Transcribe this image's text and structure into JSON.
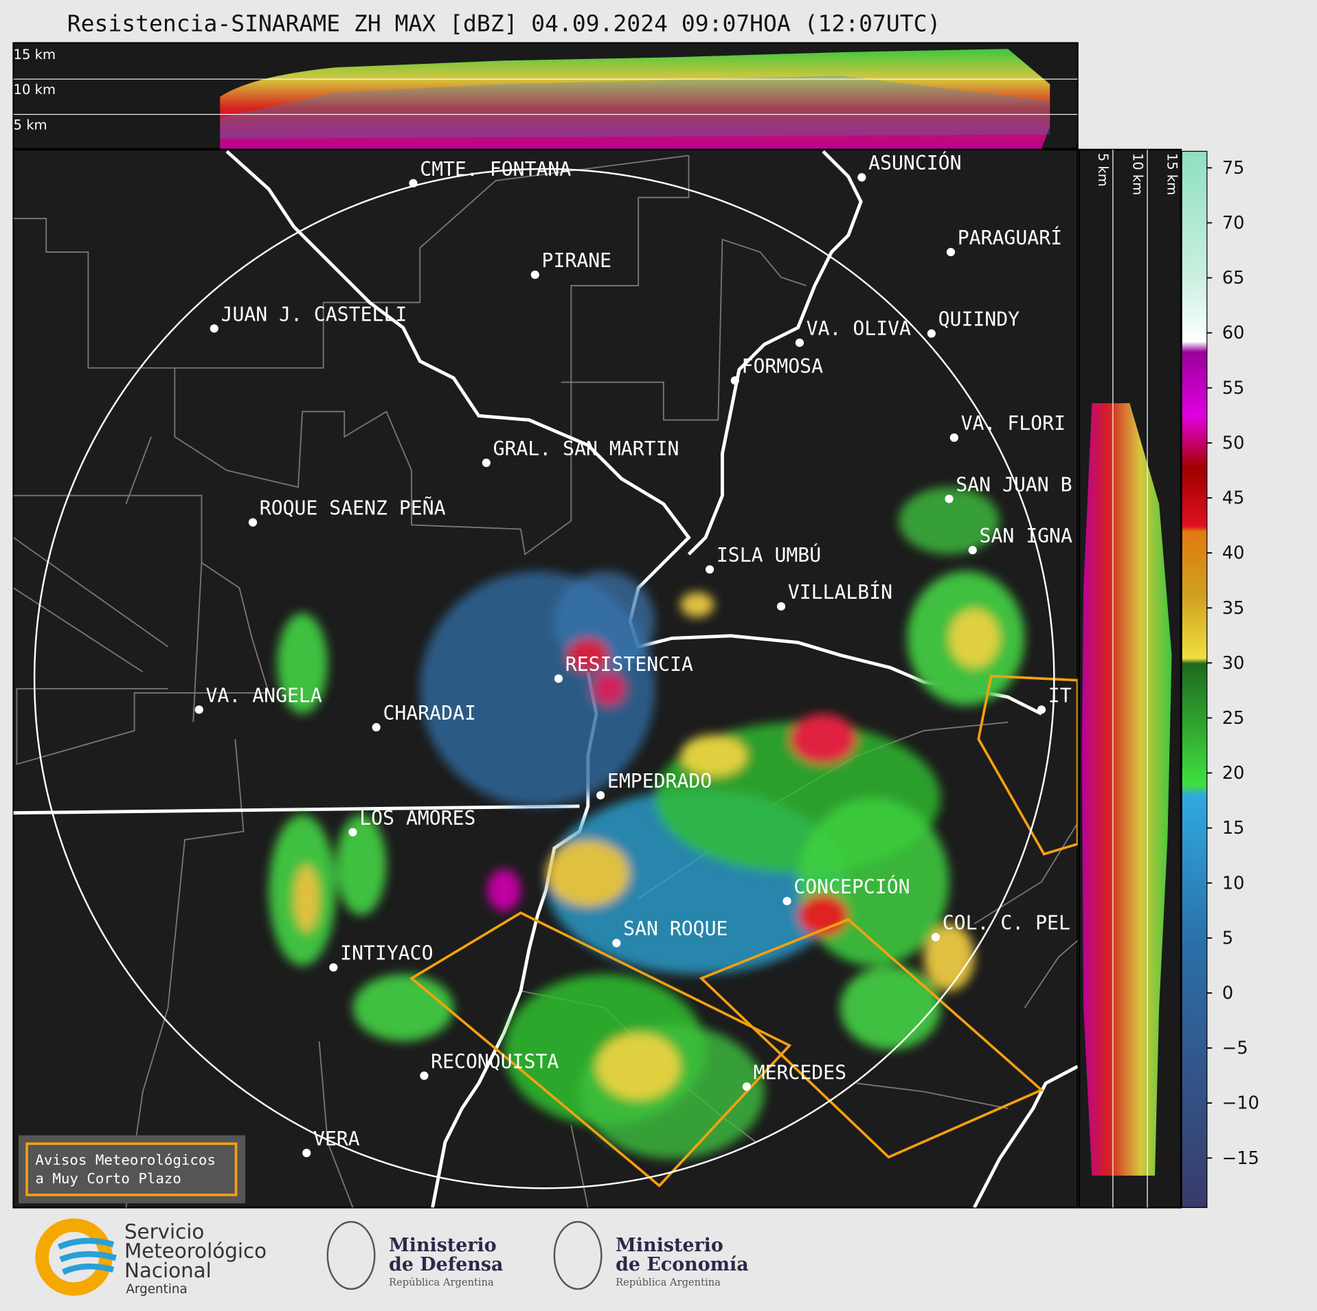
{
  "title": "Resistencia-SINARAME ZH MAX [dBZ] 04.09.2024 09:07HOA (12:07UTC)",
  "cross_section_top": {
    "height_labels": [
      "15 km",
      "10 km",
      "5 km"
    ]
  },
  "cross_section_right": {
    "height_labels": [
      "5 km",
      "10 km",
      "15 km"
    ]
  },
  "colorbar": {
    "lim": [
      -19.5,
      76.5
    ],
    "ticks": [
      75,
      70,
      65,
      60,
      55,
      50,
      45,
      40,
      35,
      30,
      25,
      20,
      15,
      10,
      5,
      0,
      {
        "value": -5,
        "label": "−5"
      },
      {
        "value": -10,
        "label": "−10"
      },
      {
        "value": -15,
        "label": "−15"
      }
    ]
  },
  "cities": [
    "CMTE. FONTANA",
    "ASUNCIÓN",
    "PARAGUARÍ",
    "PIRANE",
    "JUAN J. CASTELLI",
    "VA. OLIVA",
    "QUIINDY",
    "FORMOSA",
    "VA. FLORI",
    "GRAL. SAN MARTIN",
    "SAN JUAN B",
    "ROQUE SAENZ PEÑA",
    "SAN IGNA",
    "ISLA UMBÚ",
    "VILLALBÍN",
    "RESISTENCIA",
    "VA. ANGELA",
    "CHARADAI",
    "IT",
    "EMPEDRADO",
    "LOS AMORES",
    "CONCEPCIÓN",
    "COL. C. PEL",
    "SAN ROQUE",
    "INTIYACO",
    "RECONQUISTA",
    "MERCEDES",
    "VERA"
  ],
  "warning_box": {
    "lines": [
      "Avisos Meteorológicos",
      "a Muy Corto Plazo"
    ]
  },
  "logos": {
    "smn": [
      "Servicio",
      "Meteorológico",
      "Nacional",
      "Argentina"
    ],
    "defensa": [
      "Ministerio",
      "de Defensa",
      "República Argentina"
    ],
    "economia": [
      "Ministerio",
      "de Economía",
      "República Argentina"
    ]
  }
}
